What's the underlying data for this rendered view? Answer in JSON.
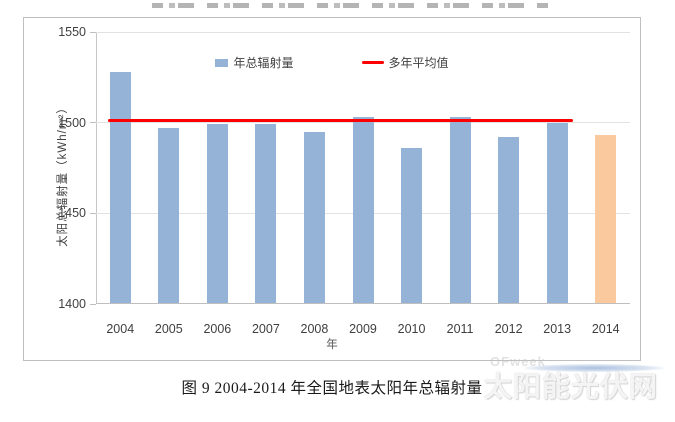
{
  "caption": {
    "text": "图 9  2004-2014 年全国地表太阳年总辐射量"
  },
  "watermark": {
    "line1": "OFweek",
    "line2": "太阳能光伏网"
  },
  "chart_data": {
    "type": "bar",
    "title": "",
    "xlabel": "年",
    "ylabel": "太阳总辐射量（kWh/m²）",
    "ylim": [
      1400,
      1550
    ],
    "yticks": [
      1400,
      1450,
      1500,
      1550
    ],
    "grid": true,
    "legend_position": "top-center",
    "categories": [
      "2004",
      "2005",
      "2006",
      "2007",
      "2008",
      "2009",
      "2010",
      "2011",
      "2012",
      "2013",
      "2014"
    ],
    "series": [
      {
        "name": "年总辐射量",
        "type": "bar",
        "values": [
          1528,
          1497,
          1499,
          1499,
          1495,
          1503,
          1486,
          1503,
          1492,
          1500,
          1493
        ]
      },
      {
        "name": "多年平均值",
        "type": "line",
        "value": 1501,
        "from_category": "2004",
        "to_category": "2013",
        "color": "#FF0000"
      }
    ],
    "bar_colors": {
      "default": "#95B3D7",
      "2014": "#FAC99E"
    }
  }
}
